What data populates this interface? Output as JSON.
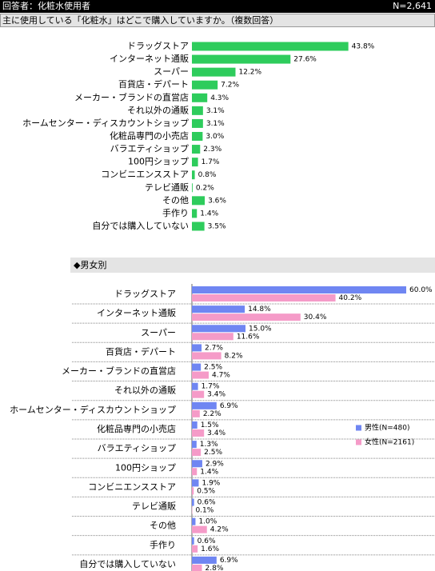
{
  "header": {
    "respondent": "回答者：化粧水使用者",
    "n": "N=2,641"
  },
  "question": "主に使用している「化粧水」はどこで購入していますか。（複数回答）",
  "chart_data": [
    {
      "type": "bar",
      "orientation": "horizontal",
      "categories": [
        "ドラッグストア",
        "インターネット通販",
        "スーパー",
        "百貨店・デパート",
        "メーカー・ブランドの直営店",
        "それ以外の通販",
        "ホームセンター・ディスカウントショップ",
        "化粧品専門の小売店",
        "バラエティショップ",
        "100円ショップ",
        "コンビニエンスストア",
        "テレビ通販",
        "その他",
        "手作り",
        "自分では購入していない"
      ],
      "values": [
        43.8,
        27.6,
        12.2,
        7.2,
        4.3,
        3.1,
        3.1,
        3.0,
        2.3,
        1.7,
        0.8,
        0.2,
        3.6,
        1.4,
        3.5
      ],
      "value_labels": [
        "43.8%",
        "27.6%",
        "12.2%",
        "7.2%",
        "4.3%",
        "3.1%",
        "3.1%",
        "3.0%",
        "2.3%",
        "1.7%",
        "0.8%",
        "0.2%",
        "3.6%",
        "1.4%",
        "3.5%"
      ],
      "color": "#2ecc5c"
    },
    {
      "type": "bar",
      "orientation": "horizontal",
      "title": "◆男女別",
      "categories": [
        "ドラッグストア",
        "インターネット通販",
        "スーパー",
        "百貨店・デパート",
        "メーカー・ブランドの直営店",
        "それ以外の通販",
        "ホームセンター・ディスカウントショップ",
        "化粧品専門の小売店",
        "バラエティショップ",
        "100円ショップ",
        "コンビニエンスストア",
        "テレビ通販",
        "その他",
        "手作り",
        "自分では購入していない"
      ],
      "series": [
        {
          "name": "男性(N=480)",
          "color": "#6f86f2",
          "values": [
            60.0,
            14.8,
            15.0,
            2.7,
            2.5,
            1.7,
            6.9,
            1.5,
            1.3,
            2.9,
            1.9,
            0.6,
            1.0,
            0.6,
            6.9
          ],
          "value_labels": [
            "60.0%",
            "14.8%",
            "15.0%",
            "2.7%",
            "2.5%",
            "1.7%",
            "6.9%",
            "1.5%",
            "1.3%",
            "2.9%",
            "1.9%",
            "0.6%",
            "1.0%",
            "0.6%",
            "6.9%"
          ]
        },
        {
          "name": "女性(N=2161)",
          "color": "#f59bc8",
          "values": [
            40.2,
            30.4,
            11.6,
            8.2,
            4.7,
            3.4,
            2.2,
            3.4,
            2.5,
            1.4,
            0.5,
            0.1,
            4.2,
            1.6,
            2.8
          ],
          "value_labels": [
            "40.2%",
            "30.4%",
            "11.6%",
            "8.2%",
            "4.7%",
            "3.4%",
            "2.2%",
            "3.4%",
            "2.5%",
            "1.4%",
            "0.5%",
            "0.1%",
            "4.2%",
            "1.6%",
            "2.8%"
          ]
        }
      ],
      "legend": "right"
    }
  ]
}
